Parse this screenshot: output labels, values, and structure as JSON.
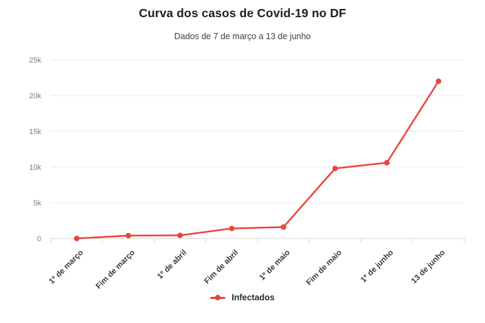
{
  "chart_data": {
    "type": "line",
    "title": "Curva dos casos de Covid-19 no DF",
    "subtitle": "Dados de 7 de março a 13 de junho",
    "categories": [
      "1º de março",
      "Fim de março",
      "1º de abril",
      "Fim de abril",
      "1º de maio",
      "Fim de maio",
      "1º de junho",
      "13 de junho"
    ],
    "series": [
      {
        "name": "Infectados",
        "color": "#e8463c",
        "values": [
          1,
          400,
          430,
          1400,
          1600,
          9800,
          10600,
          22000
        ]
      }
    ],
    "xlabel": "",
    "ylabel": "",
    "ylim": [
      0,
      25000
    ],
    "yticks": [
      0,
      5000,
      10000,
      15000,
      20000,
      25000
    ],
    "ytick_labels": [
      "0",
      "5k",
      "10k",
      "15k",
      "20k",
      "25k"
    ],
    "grid": "horizontal",
    "x_label_rotation": -45,
    "legend_position": "bottom"
  }
}
